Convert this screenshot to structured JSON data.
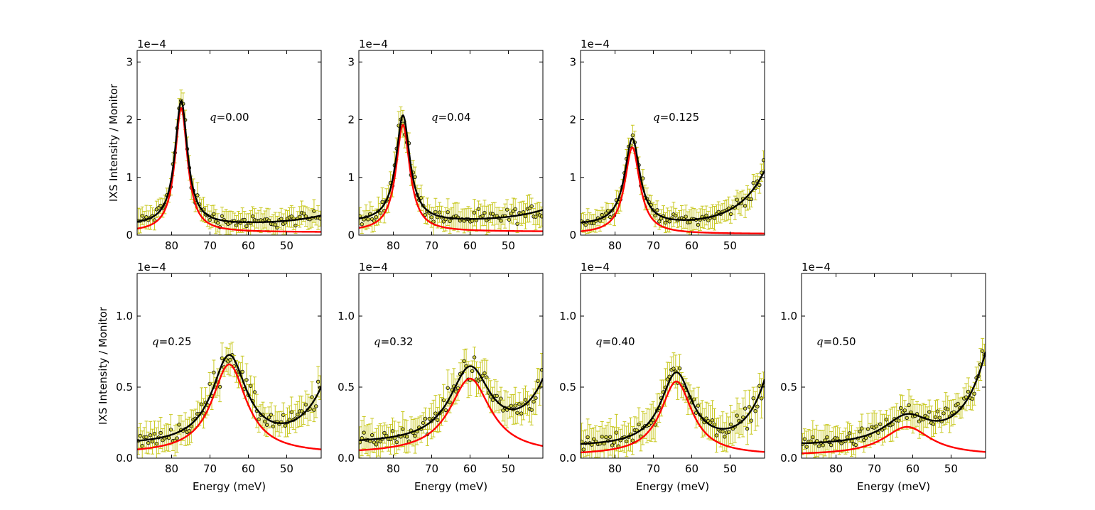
{
  "chart_data": {
    "type": "scatter",
    "xlabel": "Energy (meV)",
    "ylabel": "IXS Intensity / Monitor",
    "scale_label": "1e−4",
    "x_ticks": [
      80,
      70,
      60,
      50
    ],
    "xlim": [
      89,
      41
    ],
    "colors": {
      "data_face": "#cccc44",
      "errorbar": "#c8c820",
      "fit_total": "#000000",
      "fit_peak": "#ff0000"
    },
    "panels": [
      {
        "row": 0,
        "col": 0,
        "q_symbol": "q",
        "q_value": "=0.00",
        "ylim": [
          0,
          3.2
        ],
        "y_ticks": [
          {
            "v": 0,
            "label": "0"
          },
          {
            "v": 1,
            "label": "1"
          },
          {
            "v": 2,
            "label": "2"
          },
          {
            "v": 3,
            "label": "3"
          }
        ],
        "peak": {
          "center": 77.5,
          "width": 2.0,
          "height": 2.15
        },
        "bg": {
          "a": 0.12,
          "b": 0.3,
          "center": 35,
          "w": 10,
          "shape": "rise"
        },
        "red_floor": 0.05,
        "noise": 0.18,
        "err": 0.22
      },
      {
        "row": 0,
        "col": 1,
        "q_symbol": "q",
        "q_value": "=0.04",
        "ylim": [
          0,
          3.2
        ],
        "y_ticks": [
          {
            "v": 0,
            "label": "0"
          },
          {
            "v": 1,
            "label": "1"
          },
          {
            "v": 2,
            "label": "2"
          },
          {
            "v": 3,
            "label": "3"
          }
        ],
        "peak": {
          "center": 77.5,
          "width": 2.2,
          "height": 1.85
        },
        "bg": {
          "a": 0.16,
          "b": 0.35,
          "center": 36,
          "w": 10,
          "shape": "rise"
        },
        "red_floor": 0.06,
        "noise": 0.2,
        "err": 0.25
      },
      {
        "row": 0,
        "col": 2,
        "q_symbol": "q",
        "q_value": "=0.125",
        "ylim": [
          0,
          3.2
        ],
        "y_ticks": [
          {
            "v": 0,
            "label": "0"
          },
          {
            "v": 1,
            "label": "1"
          },
          {
            "v": 2,
            "label": "2"
          },
          {
            "v": 3,
            "label": "3"
          }
        ],
        "peak": {
          "center": 75.5,
          "width": 2.4,
          "height": 1.5
        },
        "bg": {
          "a": 0.15,
          "b": 1.25,
          "center": 39,
          "w": 7,
          "shape": "rise"
        },
        "red_floor": 0.02,
        "noise": 0.14,
        "err": 0.22
      },
      {
        "row": 1,
        "col": 0,
        "q_symbol": "q",
        "q_value": "=0.25",
        "ylim": [
          0,
          1.3
        ],
        "y_ticks": [
          {
            "v": 0,
            "label": "0.0"
          },
          {
            "v": 0.5,
            "label": "0.5"
          },
          {
            "v": 1,
            "label": "1.0"
          }
        ],
        "peak": {
          "center": 65,
          "width": 5.5,
          "height": 0.63
        },
        "bg": {
          "a": 0.06,
          "b": 0.45,
          "center": 40,
          "w": 6,
          "shape": "rise"
        },
        "red_floor": 0.03,
        "noise": 0.08,
        "err": 0.12
      },
      {
        "row": 1,
        "col": 1,
        "q_symbol": "q",
        "q_value": "=0.32",
        "ylim": [
          0,
          1.3
        ],
        "y_ticks": [
          {
            "v": 0,
            "label": "0.0"
          },
          {
            "v": 0.5,
            "label": "0.5"
          },
          {
            "v": 1,
            "label": "1.0"
          }
        ],
        "peak": {
          "center": 60,
          "width": 6.5,
          "height": 0.53
        },
        "bg": {
          "a": 0.07,
          "b": 0.48,
          "center": 40,
          "w": 6,
          "shape": "rise"
        },
        "red_floor": 0.03,
        "noise": 0.08,
        "err": 0.13
      },
      {
        "row": 1,
        "col": 2,
        "q_symbol": "q",
        "q_value": "=0.40",
        "ylim": [
          0,
          1.3
        ],
        "y_ticks": [
          {
            "v": 0,
            "label": "0.0"
          },
          {
            "v": 0.5,
            "label": "0.5"
          },
          {
            "v": 1,
            "label": "1.0"
          }
        ],
        "peak": {
          "center": 64,
          "width": 5.0,
          "height": 0.52
        },
        "bg": {
          "a": 0.06,
          "b": 0.55,
          "center": 40,
          "w": 5,
          "shape": "rise"
        },
        "red_floor": 0.02,
        "noise": 0.08,
        "err": 0.14
      },
      {
        "row": 1,
        "col": 3,
        "q_symbol": "q",
        "q_value": "=0.50",
        "ylim": [
          0,
          1.3
        ],
        "y_ticks": [
          {
            "v": 0,
            "label": "0.0"
          },
          {
            "v": 0.5,
            "label": "0.5"
          },
          {
            "v": 1,
            "label": "1.0"
          }
        ],
        "peak": {
          "center": 61.5,
          "width": 7.5,
          "height": 0.2
        },
        "bg": {
          "a": 0.07,
          "b": 0.75,
          "center": 40,
          "w": 6,
          "shape": "rise"
        },
        "red_floor": 0.02,
        "noise": 0.08,
        "err": 0.12
      }
    ]
  }
}
